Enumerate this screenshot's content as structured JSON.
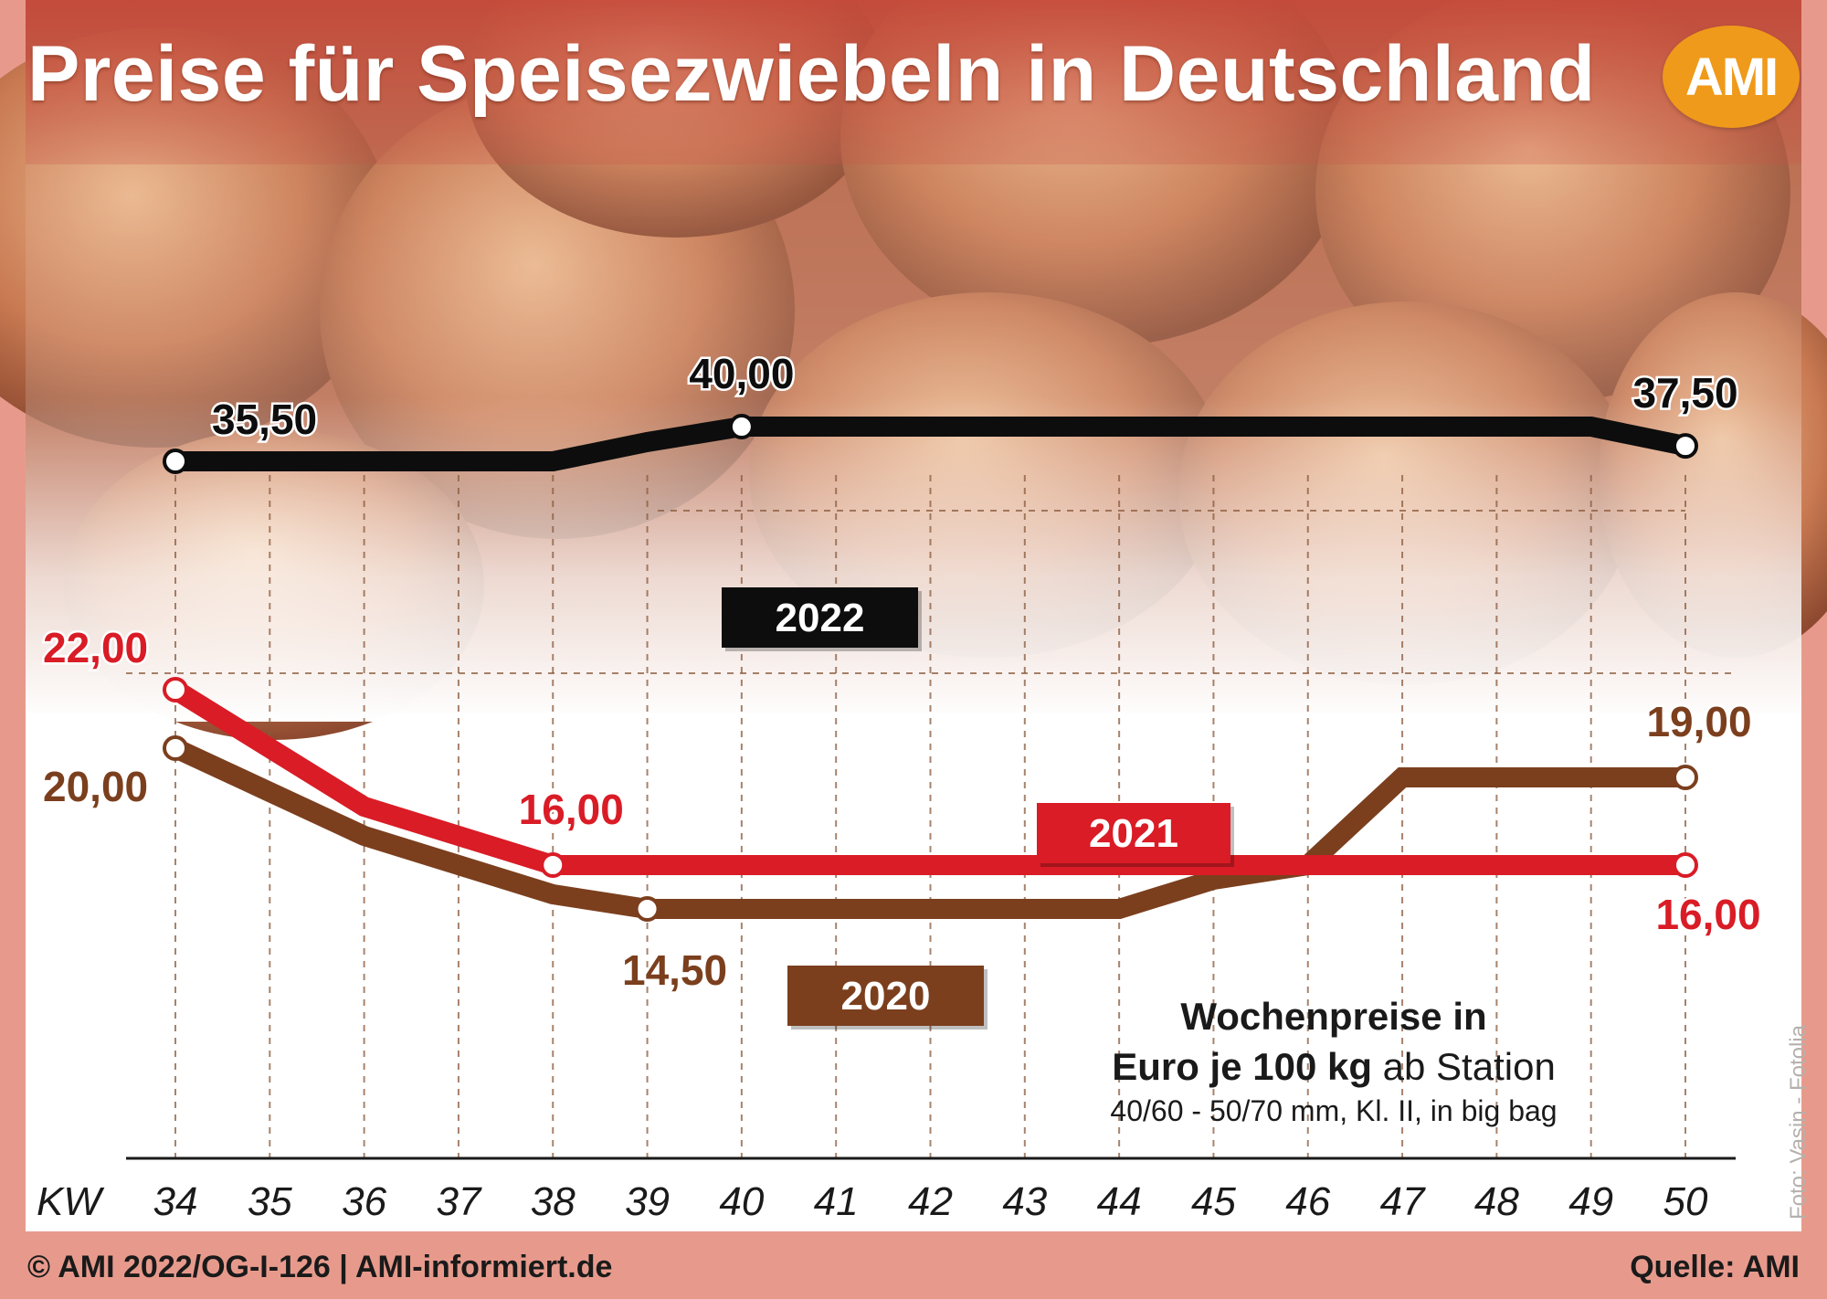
{
  "title": "Preise für Speisezwiebeln in Deutschland",
  "logo": "AMI",
  "footer": {
    "left": "© AMI 2022/OG-I-126 | AMI-informiert.de",
    "right": "Quelle: AMI"
  },
  "photo_credit": "Foto: Vasin - Fotolia",
  "info": {
    "line1": "Wochenpreise in",
    "line2_bold": "Euro je 100 kg",
    "line2_rest": " ab Station",
    "line3": "40/60 - 50/70 mm, Kl. II, in big bag"
  },
  "colors": {
    "background": "#e79a8c",
    "series_2022": "#0d0d0d",
    "series_2021": "#d91c26",
    "series_2020": "#7b3f1e",
    "logo": "#ef9a1a"
  },
  "chart_data": {
    "type": "line",
    "title": "Preise für Speisezwiebeln in Deutschland",
    "xlabel": "KW",
    "ylabel": "Euro je 100 kg ab Station",
    "x": [
      34,
      35,
      36,
      37,
      38,
      39,
      40,
      41,
      42,
      43,
      44,
      45,
      46,
      47,
      48,
      49,
      50
    ],
    "grid": true,
    "legend": "labels on lines",
    "axis_break": [
      26,
      34
    ],
    "series": [
      {
        "name": "2022",
        "values": [
          35.5,
          35.5,
          35.5,
          35.5,
          35.5,
          38,
          40,
          40,
          40,
          40,
          40,
          40,
          40,
          40,
          40,
          40,
          37.5
        ]
      },
      {
        "name": "2021",
        "values": [
          22,
          20,
          18,
          17,
          16,
          16,
          16,
          16,
          16,
          16,
          16,
          16,
          16,
          16,
          16,
          16,
          16
        ]
      },
      {
        "name": "2020",
        "values": [
          20,
          18.5,
          17,
          16,
          15,
          14.5,
          14.5,
          14.5,
          14.5,
          14.5,
          14.5,
          15.5,
          16,
          19,
          19,
          19,
          19
        ]
      }
    ],
    "annotations": [
      {
        "series": "2022",
        "x": 34,
        "label": "35,50"
      },
      {
        "series": "2022",
        "x": 40,
        "label": "40,00"
      },
      {
        "series": "2022",
        "x": 50,
        "label": "37,50"
      },
      {
        "series": "2021",
        "x": 34,
        "label": "22,00"
      },
      {
        "series": "2021",
        "x": 38,
        "label": "16,00"
      },
      {
        "series": "2021",
        "x": 50,
        "label": "16,00"
      },
      {
        "series": "2020",
        "x": 34,
        "label": "20,00"
      },
      {
        "series": "2020",
        "x": 39,
        "label": "14,50"
      },
      {
        "series": "2020",
        "x": 50,
        "label": "19,00"
      }
    ]
  }
}
